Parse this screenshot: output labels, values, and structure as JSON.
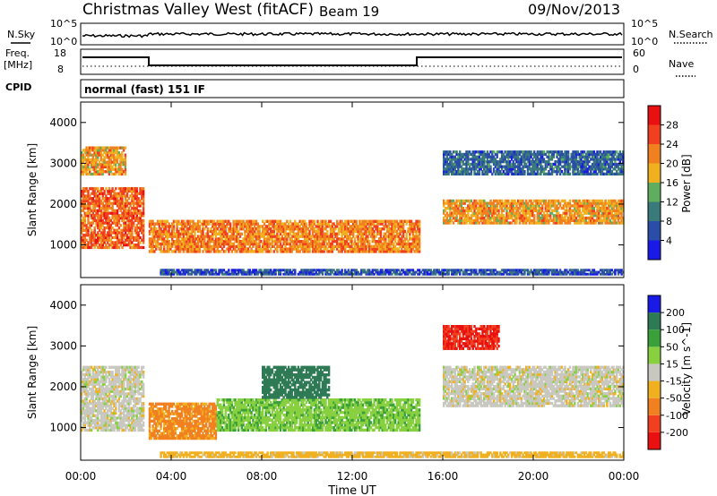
{
  "header": {
    "title": "Christmas Valley West (fitACF)",
    "beam": "Beam 19",
    "date": "09/Nov/2013"
  },
  "noise_panel": {
    "left_label": "N.Sky",
    "right_label": "N.Search",
    "left_ticks": [
      "10^5",
      "10^0"
    ],
    "right_ticks": [
      "10^5",
      "10^0"
    ]
  },
  "freq_panel": {
    "left_label_1": "Freq.",
    "left_label_2": "[MHz]",
    "right_label": "Nave",
    "left_ticks": [
      "18",
      "8"
    ],
    "right_ticks": [
      "60",
      "0"
    ]
  },
  "cpid": {
    "label": "CPID",
    "mode": "normal (fast) 151 IF"
  },
  "x_axis": {
    "title": "Time UT",
    "ticks": [
      "00:00",
      "04:00",
      "08:00",
      "12:00",
      "16:00",
      "20:00",
      "00:00"
    ]
  },
  "chart_data": [
    {
      "type": "heatmap",
      "panel": "power",
      "ylabel": "Slant Range [km]",
      "y_ticks": [
        1000,
        2000,
        3000,
        4000
      ],
      "ylim": [
        200,
        4500
      ],
      "xlim_hours": [
        0,
        24
      ],
      "colorbar": {
        "title": "Power [dB]",
        "ticks": [
          "4",
          "8",
          "12",
          "16",
          "20",
          "24",
          "28"
        ],
        "colors": [
          "#1a1ae6",
          "#2a4ea8",
          "#3a7a7a",
          "#5fae5f",
          "#f0b020",
          "#f08020",
          "#f04020",
          "#e81010"
        ]
      },
      "regions": [
        {
          "t0": 0.0,
          "t1": 2.8,
          "r0": 900,
          "r1": 2400,
          "level": 26
        },
        {
          "t0": 3.0,
          "t1": 15.0,
          "r0": 800,
          "r1": 1600,
          "level": 24
        },
        {
          "t0": 16.0,
          "t1": 24.0,
          "r0": 1500,
          "r1": 2100,
          "level": 22
        },
        {
          "t0": 16.0,
          "t1": 24.0,
          "r0": 2700,
          "r1": 3300,
          "level": 10
        },
        {
          "t0": 0.0,
          "t1": 2.0,
          "r0": 2700,
          "r1": 3400,
          "level": 22
        },
        {
          "t0": 3.5,
          "t1": 24.0,
          "r0": 250,
          "r1": 400,
          "level": 8
        }
      ]
    },
    {
      "type": "heatmap",
      "panel": "velocity",
      "ylabel": "Slant Range [km]",
      "y_ticks": [
        1000,
        2000,
        3000,
        4000
      ],
      "ylim": [
        200,
        4500
      ],
      "xlim_hours": [
        0,
        24
      ],
      "colorbar": {
        "title": "Velocity [m s^-1]",
        "ticks": [
          "200",
          "100",
          "50",
          "15",
          "-15",
          "-50",
          "-100",
          "-200"
        ],
        "colors": [
          "#1a1ae6",
          "#2e7a55",
          "#3aa03a",
          "#88d040",
          "#c8c8c0",
          "#f0b020",
          "#f08020",
          "#f04020",
          "#e81010"
        ]
      },
      "regions": [
        {
          "t0": 0.0,
          "t1": 2.8,
          "r0": 900,
          "r1": 2500,
          "level": 0
        },
        {
          "t0": 3.0,
          "t1": 6.0,
          "r0": 700,
          "r1": 1600,
          "level": -60
        },
        {
          "t0": 6.0,
          "t1": 15.0,
          "r0": 900,
          "r1": 1700,
          "level": 40
        },
        {
          "t0": 16.0,
          "t1": 24.0,
          "r0": 1500,
          "r1": 2500,
          "level": 0
        },
        {
          "t0": 16.0,
          "t1": 18.5,
          "r0": 2900,
          "r1": 3500,
          "level": -200
        },
        {
          "t0": 8.0,
          "t1": 11.0,
          "r0": 1700,
          "r1": 2500,
          "level": 180
        },
        {
          "t0": 3.5,
          "t1": 24.0,
          "r0": 250,
          "r1": 400,
          "level": -30
        }
      ]
    }
  ]
}
